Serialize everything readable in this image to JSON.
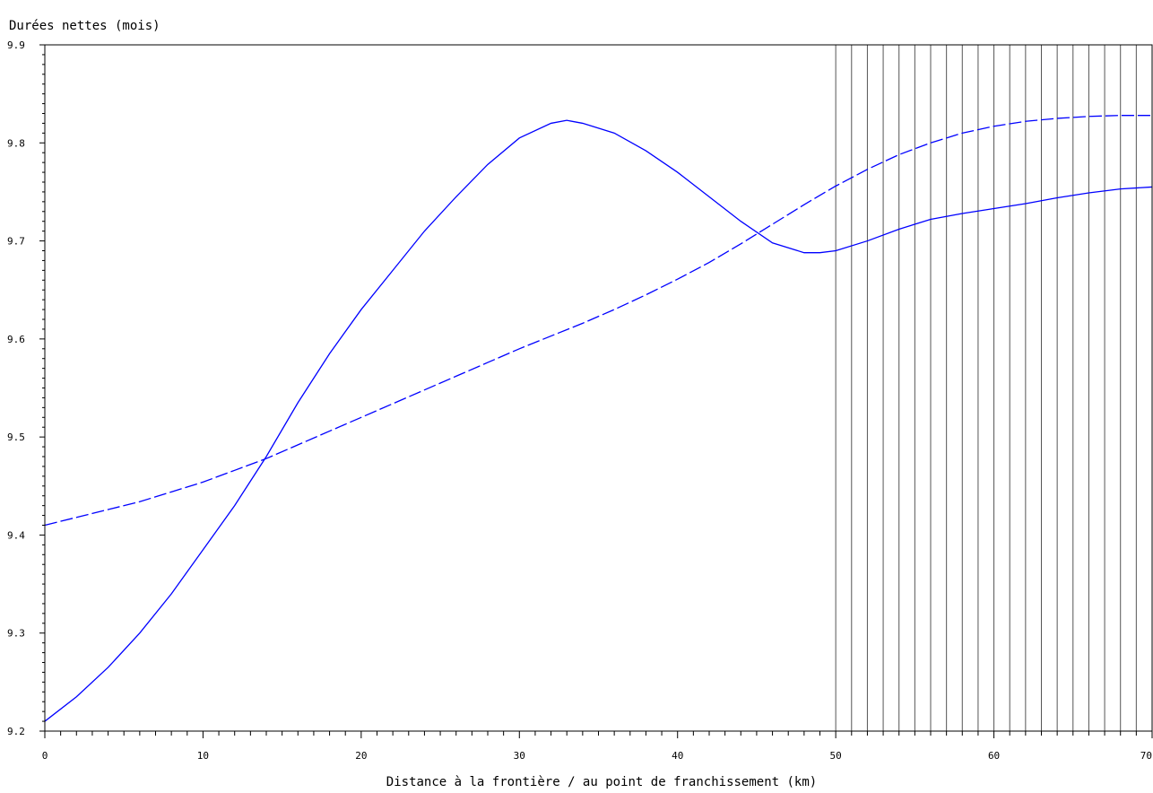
{
  "chart_data": {
    "type": "line",
    "title": "Durées nettes (mois)",
    "xlabel": "Distance à la frontière / au point de franchissement (km)",
    "ylabel": "",
    "xlim": [
      0,
      70
    ],
    "ylim": [
      9.2,
      9.9
    ],
    "x_ticks": [
      0,
      10,
      20,
      30,
      40,
      50,
      60,
      70
    ],
    "x_tick_labels": [
      "0",
      "10",
      "20",
      "30",
      "40",
      "50",
      "60",
      "70"
    ],
    "y_ticks": [
      9.2,
      9.3,
      9.4,
      9.5,
      9.6,
      9.7,
      9.8,
      9.9
    ],
    "y_tick_labels": [
      "9.2",
      "9.3",
      "9.4",
      "9.5",
      "9.6",
      "9.7",
      "9.8",
      "9.9"
    ],
    "grid": false,
    "vertical_lines": [
      50,
      51,
      52,
      53,
      54,
      55,
      56,
      57,
      58,
      59,
      60,
      61,
      62,
      63,
      64,
      65,
      66,
      67,
      68,
      69,
      70
    ],
    "vertical_line_color": "#555555",
    "series": [
      {
        "style": "solid",
        "color": "#0000ff",
        "x": [
          0,
          2,
          4,
          6,
          8,
          10,
          12,
          14,
          16,
          18,
          20,
          22,
          24,
          26,
          28,
          30,
          32,
          33,
          34,
          36,
          38,
          40,
          42,
          44,
          46,
          48,
          49,
          50,
          52,
          54,
          56,
          58,
          60,
          62,
          64,
          66,
          68,
          70
        ],
        "y": [
          9.21,
          9.235,
          9.265,
          9.3,
          9.34,
          9.385,
          9.43,
          9.48,
          9.535,
          9.585,
          9.63,
          9.67,
          9.71,
          9.745,
          9.778,
          9.805,
          9.82,
          9.823,
          9.82,
          9.81,
          9.792,
          9.77,
          9.745,
          9.72,
          9.698,
          9.688,
          9.688,
          9.69,
          9.7,
          9.712,
          9.722,
          9.728,
          9.733,
          9.738,
          9.744,
          9.749,
          9.753,
          9.755
        ]
      },
      {
        "style": "dashed",
        "color": "#0000ff",
        "x": [
          0,
          2,
          4,
          6,
          8,
          10,
          12,
          14,
          16,
          18,
          20,
          22,
          24,
          26,
          28,
          30,
          32,
          34,
          36,
          38,
          40,
          42,
          44,
          46,
          48,
          50,
          52,
          54,
          56,
          58,
          60,
          62,
          64,
          66,
          68,
          70
        ],
        "y": [
          9.41,
          9.418,
          9.426,
          9.434,
          9.444,
          9.454,
          9.466,
          9.478,
          9.492,
          9.506,
          9.52,
          9.534,
          9.548,
          9.562,
          9.576,
          9.59,
          9.603,
          9.616,
          9.63,
          9.645,
          9.661,
          9.678,
          9.697,
          9.717,
          9.737,
          9.756,
          9.773,
          9.788,
          9.8,
          9.81,
          9.817,
          9.822,
          9.825,
          9.827,
          9.828,
          9.828
        ]
      }
    ]
  }
}
